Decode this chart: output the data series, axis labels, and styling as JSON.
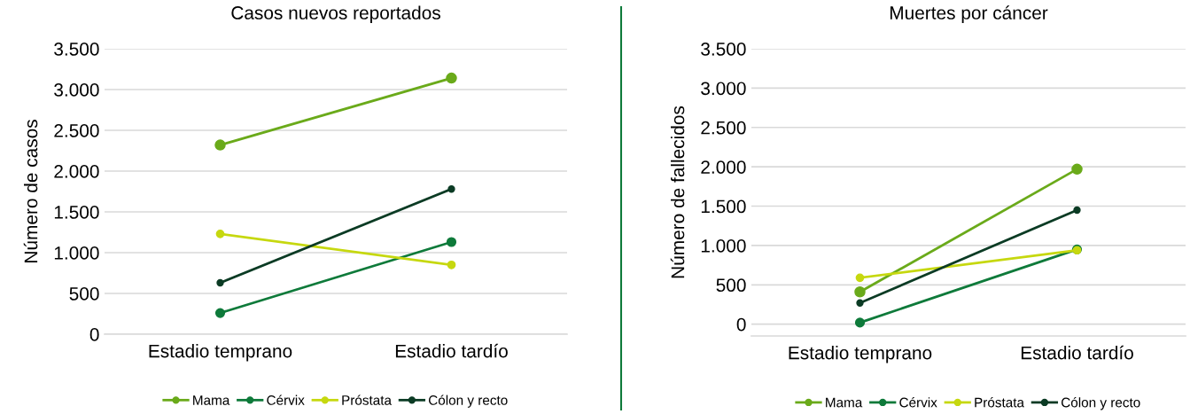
{
  "chart_data": [
    {
      "type": "line",
      "title": "Casos nuevos reportados",
      "ylabel": "Número de casos",
      "categories": [
        "Estadio temprano",
        "Estadio tardío"
      ],
      "series": [
        {
          "name": "Mama",
          "color": "#6aaa1a",
          "values": [
            2320,
            3140
          ]
        },
        {
          "name": "Cérvix",
          "color": "#0e7a3a",
          "values": [
            260,
            1130
          ]
        },
        {
          "name": "Próstata",
          "color": "#c6d80f",
          "values": [
            1230,
            850
          ]
        },
        {
          "name": "Cólon y recto",
          "color": "#0b3b24",
          "values": [
            630,
            1780
          ]
        }
      ],
      "ylim": [
        0,
        3500
      ],
      "yticks": [
        0,
        {
          "value": 500,
          "label": "500"
        },
        {
          "value": 1000,
          "label": "1.000"
        },
        {
          "value": 1500,
          "label": "1.500"
        },
        {
          "value": 2000,
          "label": "2.000"
        },
        {
          "value": 2500,
          "label": "2.500"
        },
        {
          "value": 3000,
          "label": "3.000"
        },
        {
          "value": 3500,
          "label": "3.500"
        }
      ],
      "grid": "y",
      "legend": "bottom",
      "marker": "circle"
    },
    {
      "type": "line",
      "title": "Muertes por cáncer",
      "ylabel": "Número de fallecidos",
      "categories": [
        "Estadio temprano",
        "Estadio tardío"
      ],
      "series": [
        {
          "name": "Mama",
          "color": "#6aaa1a",
          "values": [
            410,
            1970
          ]
        },
        {
          "name": "Cérvix",
          "color": "#0e7a3a",
          "values": [
            20,
            950
          ]
        },
        {
          "name": "Próstata",
          "color": "#c6d80f",
          "values": [
            590,
            940
          ]
        },
        {
          "name": "Cólon y recto",
          "color": "#0b3b24",
          "values": [
            270,
            1450
          ]
        }
      ],
      "ylim": [
        -150,
        3500
      ],
      "yticks": [
        0,
        {
          "value": 500,
          "label": "500"
        },
        {
          "value": 1000,
          "label": "1.000"
        },
        {
          "value": 1500,
          "label": "1.500"
        },
        {
          "value": 2000,
          "label": "2.000"
        },
        {
          "value": 2500,
          "label": "2.500"
        },
        {
          "value": 3000,
          "label": "3.000"
        },
        {
          "value": 3500,
          "label": "3.500"
        }
      ],
      "grid": "y",
      "legend": "bottom",
      "marker": "circle"
    }
  ]
}
